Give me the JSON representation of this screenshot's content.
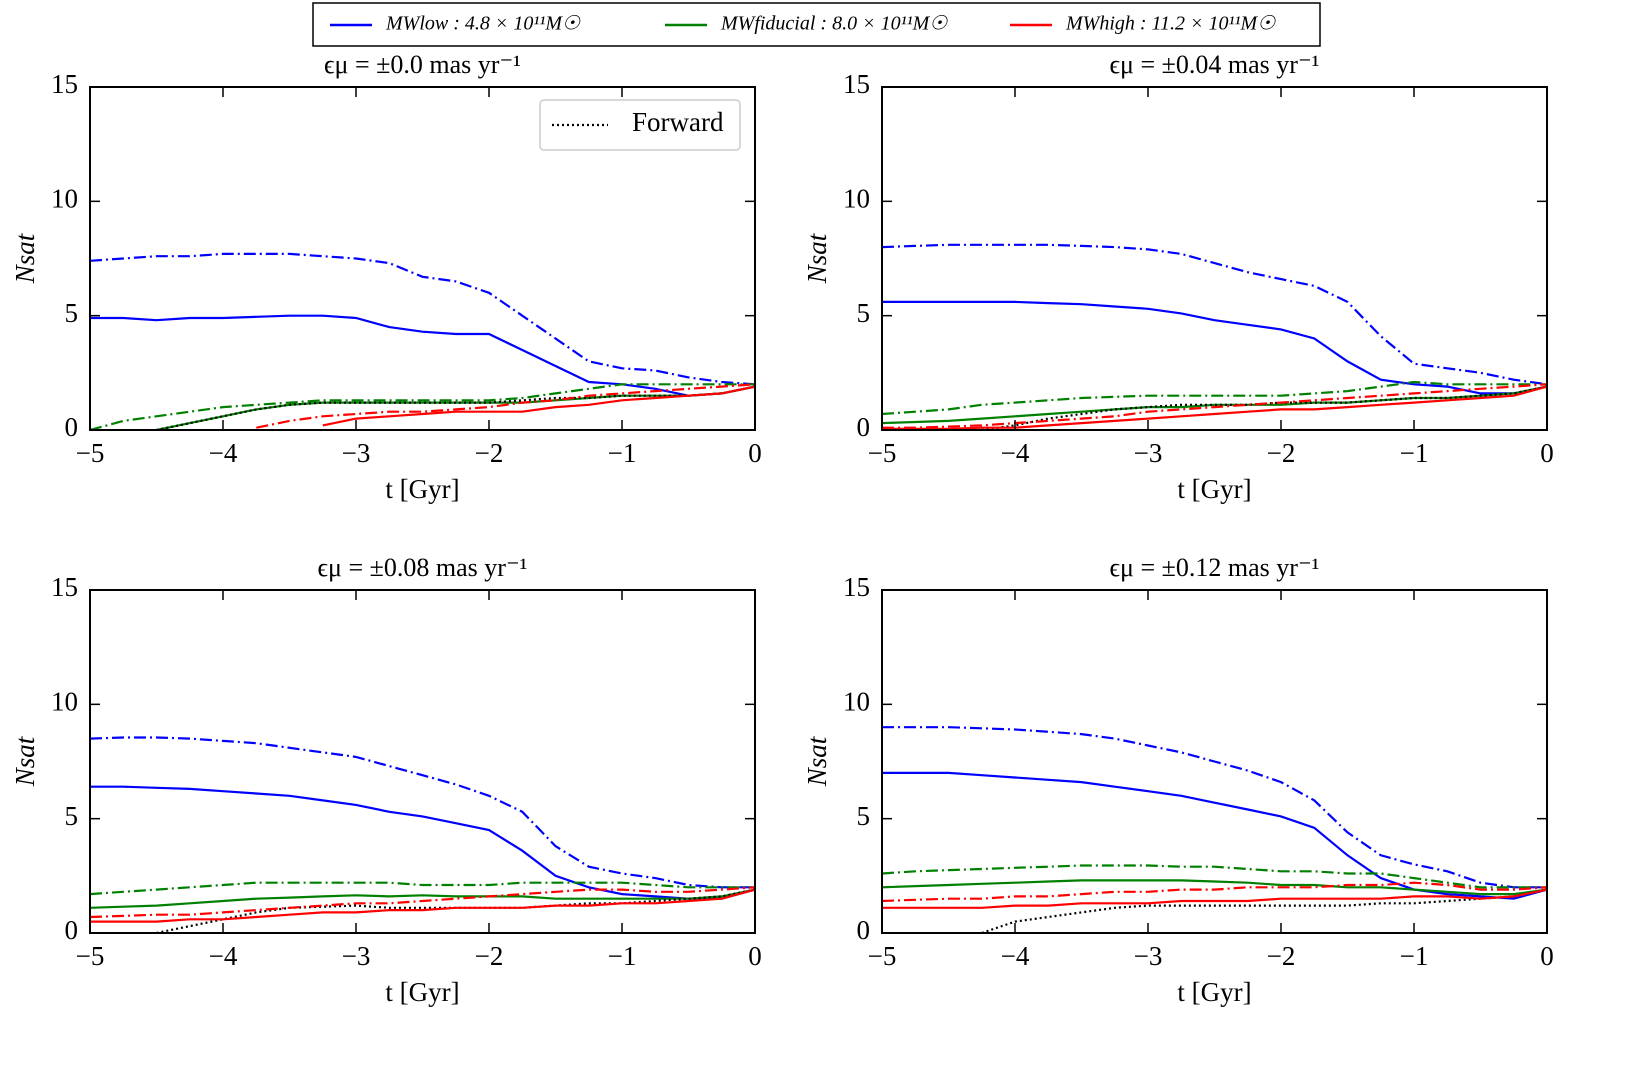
{
  "legend": [
    {
      "label": "MWlow : 4.8 × 10¹¹M☉",
      "color": "#0000ff"
    },
    {
      "label": "MWfiducial : 8.0 × 10¹¹M☉",
      "color": "#008000"
    },
    {
      "label": "MWhigh : 11.2 × 10¹¹M☉",
      "color": "#ff0000"
    }
  ],
  "chart_data": [
    {
      "type": "line",
      "title": "ϵμ = ±0.0 mas yr⁻¹",
      "xlabel": "t [Gyr]",
      "ylabel": "Nsat",
      "legend": "upper right",
      "xlim": [
        -5,
        0
      ],
      "ylim": [
        0,
        15
      ],
      "xticks": [
        {
          "value": -5,
          "label": "−5"
        },
        {
          "value": -4,
          "label": "−4"
        },
        {
          "value": -3,
          "label": "−3"
        },
        {
          "value": -2,
          "label": "−2"
        },
        {
          "value": -1,
          "label": "−1"
        },
        0
      ],
      "yticks": [
        0,
        5,
        10,
        15
      ],
      "x": [
        -5,
        -4.75,
        -4.5,
        -4.25,
        -4,
        -3.75,
        -3.5,
        -3.25,
        -3,
        -2.75,
        -2.5,
        -2.25,
        -2,
        -1.75,
        -1.5,
        -1.25,
        -1,
        -0.75,
        -0.5,
        -0.25,
        0
      ],
      "series": [
        {
          "color": "#0000ff",
          "style": "dashdot",
          "values": [
            7.4,
            7.5,
            7.6,
            7.6,
            7.7,
            7.7,
            7.7,
            7.6,
            7.5,
            7.3,
            6.7,
            6.5,
            6.0,
            5.0,
            4.0,
            3.0,
            2.7,
            2.6,
            2.3,
            2.1,
            2.0
          ]
        },
        {
          "color": "#0000ff",
          "style": "solid",
          "values": [
            4.9,
            4.9,
            4.8,
            4.9,
            4.9,
            4.95,
            5.0,
            5.0,
            4.9,
            4.5,
            4.3,
            4.2,
            4.2,
            3.5,
            2.8,
            2.1,
            2.0,
            1.8,
            1.5,
            1.6,
            1.9
          ]
        },
        {
          "color": "#008000",
          "style": "dashdot",
          "values": [
            0,
            0.4,
            0.6,
            0.8,
            1.0,
            1.1,
            1.2,
            1.3,
            1.3,
            1.3,
            1.3,
            1.3,
            1.3,
            1.4,
            1.6,
            1.8,
            2.0,
            2.0,
            2.0,
            2.0,
            2.0
          ]
        },
        {
          "color": "#008000",
          "style": "solid",
          "values": [
            null,
            null,
            0,
            0.3,
            0.6,
            0.9,
            1.1,
            1.2,
            1.2,
            1.2,
            1.2,
            1.2,
            1.2,
            1.2,
            1.3,
            1.4,
            1.5,
            1.5,
            1.5,
            1.6,
            1.9
          ]
        },
        {
          "name": "Forward",
          "color": "#000000",
          "style": "dotted",
          "values": [
            null,
            null,
            0,
            0.3,
            0.6,
            0.9,
            1.1,
            1.2,
            1.2,
            1.2,
            1.2,
            1.2,
            1.2,
            1.3,
            1.4,
            1.4,
            1.5,
            1.5,
            1.5,
            1.6,
            1.9
          ]
        },
        {
          "color": "#ff0000",
          "style": "dashdot",
          "values": [
            null,
            null,
            null,
            null,
            null,
            0.1,
            0.4,
            0.6,
            0.7,
            0.8,
            0.8,
            0.9,
            1.0,
            1.2,
            1.3,
            1.5,
            1.6,
            1.7,
            1.8,
            1.9,
            2.0
          ]
        },
        {
          "color": "#ff0000",
          "style": "solid",
          "values": [
            null,
            null,
            null,
            null,
            null,
            null,
            null,
            0.2,
            0.5,
            0.6,
            0.7,
            0.8,
            0.8,
            0.8,
            1.0,
            1.1,
            1.3,
            1.4,
            1.5,
            1.6,
            1.9
          ]
        }
      ]
    },
    {
      "type": "line",
      "title": "ϵμ = ±0.04 mas yr⁻¹",
      "xlabel": "t [Gyr]",
      "ylabel": "Nsat",
      "xlim": [
        -5,
        0
      ],
      "ylim": [
        0,
        15
      ],
      "xticks": [
        {
          "value": -5,
          "label": "−5"
        },
        {
          "value": -4,
          "label": "−4"
        },
        {
          "value": -3,
          "label": "−3"
        },
        {
          "value": -2,
          "label": "−2"
        },
        {
          "value": -1,
          "label": "−1"
        },
        0
      ],
      "yticks": [
        0,
        5,
        10,
        15
      ],
      "x": [
        -5,
        -4.75,
        -4.5,
        -4.25,
        -4,
        -3.75,
        -3.5,
        -3.25,
        -3,
        -2.75,
        -2.5,
        -2.25,
        -2,
        -1.75,
        -1.5,
        -1.25,
        -1,
        -0.75,
        -0.5,
        -0.25,
        0
      ],
      "series": [
        {
          "color": "#0000ff",
          "style": "dashdot",
          "values": [
            8.0,
            8.05,
            8.1,
            8.1,
            8.1,
            8.1,
            8.05,
            8.0,
            7.9,
            7.7,
            7.3,
            6.9,
            6.6,
            6.3,
            5.6,
            4.1,
            2.9,
            2.7,
            2.5,
            2.2,
            2.0
          ]
        },
        {
          "color": "#0000ff",
          "style": "solid",
          "values": [
            5.6,
            5.6,
            5.6,
            5.6,
            5.6,
            5.55,
            5.5,
            5.4,
            5.3,
            5.1,
            4.8,
            4.6,
            4.4,
            4.0,
            3.0,
            2.2,
            2.0,
            1.9,
            1.6,
            1.6,
            1.9
          ]
        },
        {
          "color": "#008000",
          "style": "dashdot",
          "values": [
            0.7,
            0.8,
            0.9,
            1.1,
            1.2,
            1.3,
            1.4,
            1.45,
            1.5,
            1.5,
            1.5,
            1.5,
            1.5,
            1.6,
            1.7,
            1.9,
            2.1,
            2.0,
            2.0,
            2.0,
            2.0
          ]
        },
        {
          "color": "#008000",
          "style": "solid",
          "values": [
            0.3,
            0.35,
            0.4,
            0.5,
            0.6,
            0.7,
            0.8,
            0.9,
            1.0,
            1.0,
            1.1,
            1.1,
            1.1,
            1.2,
            1.2,
            1.3,
            1.4,
            1.4,
            1.5,
            1.6,
            1.9
          ]
        },
        {
          "color": "#000000",
          "style": "dotted",
          "values": [
            null,
            null,
            null,
            0,
            0.2,
            0.5,
            0.7,
            0.9,
            1.0,
            1.1,
            1.1,
            1.1,
            1.2,
            1.2,
            1.2,
            1.3,
            1.4,
            1.4,
            1.5,
            1.6,
            1.9
          ]
        },
        {
          "color": "#ff0000",
          "style": "dashdot",
          "values": [
            0.1,
            0.1,
            0.15,
            0.2,
            0.3,
            0.4,
            0.5,
            0.6,
            0.8,
            0.9,
            1.0,
            1.1,
            1.2,
            1.3,
            1.4,
            1.5,
            1.6,
            1.7,
            1.8,
            1.9,
            2.0
          ]
        },
        {
          "color": "#ff0000",
          "style": "solid",
          "values": [
            0.05,
            0.05,
            0.05,
            0.1,
            0.1,
            0.2,
            0.3,
            0.4,
            0.5,
            0.6,
            0.7,
            0.8,
            0.9,
            0.9,
            1.0,
            1.1,
            1.2,
            1.3,
            1.4,
            1.5,
            1.9
          ]
        }
      ]
    },
    {
      "type": "line",
      "title": "ϵμ = ±0.08 mas yr⁻¹",
      "xlabel": "t [Gyr]",
      "ylabel": "Nsat",
      "xlim": [
        -5,
        0
      ],
      "ylim": [
        0,
        15
      ],
      "xticks": [
        {
          "value": -5,
          "label": "−5"
        },
        {
          "value": -4,
          "label": "−4"
        },
        {
          "value": -3,
          "label": "−3"
        },
        {
          "value": -2,
          "label": "−2"
        },
        {
          "value": -1,
          "label": "−1"
        },
        0
      ],
      "yticks": [
        0,
        5,
        10,
        15
      ],
      "x": [
        -5,
        -4.75,
        -4.5,
        -4.25,
        -4,
        -3.75,
        -3.5,
        -3.25,
        -3,
        -2.75,
        -2.5,
        -2.25,
        -2,
        -1.75,
        -1.5,
        -1.25,
        -1,
        -0.75,
        -0.5,
        -0.25,
        0
      ],
      "series": [
        {
          "color": "#0000ff",
          "style": "dashdot",
          "values": [
            8.5,
            8.55,
            8.55,
            8.5,
            8.4,
            8.3,
            8.1,
            7.9,
            7.7,
            7.3,
            6.9,
            6.5,
            6.0,
            5.3,
            3.8,
            2.9,
            2.6,
            2.4,
            2.1,
            2.0,
            2.0
          ]
        },
        {
          "color": "#0000ff",
          "style": "solid",
          "values": [
            6.4,
            6.4,
            6.35,
            6.3,
            6.2,
            6.1,
            6.0,
            5.8,
            5.6,
            5.3,
            5.1,
            4.8,
            4.5,
            3.6,
            2.5,
            2.0,
            1.7,
            1.6,
            1.5,
            1.5,
            1.9
          ]
        },
        {
          "color": "#008000",
          "style": "dashdot",
          "values": [
            1.7,
            1.8,
            1.9,
            2.0,
            2.1,
            2.2,
            2.2,
            2.2,
            2.2,
            2.2,
            2.1,
            2.1,
            2.1,
            2.2,
            2.2,
            2.2,
            2.2,
            2.1,
            2.0,
            2.0,
            2.0
          ]
        },
        {
          "color": "#008000",
          "style": "solid",
          "values": [
            1.1,
            1.15,
            1.2,
            1.3,
            1.4,
            1.5,
            1.55,
            1.6,
            1.65,
            1.6,
            1.65,
            1.6,
            1.6,
            1.6,
            1.5,
            1.5,
            1.5,
            1.5,
            1.5,
            1.6,
            1.9
          ]
        },
        {
          "color": "#000000",
          "style": "dotted",
          "values": [
            null,
            null,
            0,
            0.3,
            0.6,
            0.9,
            1.1,
            1.15,
            1.2,
            1.1,
            1.1,
            1.1,
            1.1,
            1.1,
            1.2,
            1.3,
            1.3,
            1.4,
            1.5,
            1.6,
            1.9
          ]
        },
        {
          "color": "#ff0000",
          "style": "dashdot",
          "values": [
            0.7,
            0.75,
            0.8,
            0.8,
            0.9,
            1.0,
            1.1,
            1.2,
            1.3,
            1.3,
            1.4,
            1.5,
            1.6,
            1.7,
            1.8,
            1.9,
            1.9,
            1.8,
            1.8,
            1.9,
            2.0
          ]
        },
        {
          "color": "#ff0000",
          "style": "solid",
          "values": [
            0.5,
            0.5,
            0.5,
            0.6,
            0.6,
            0.7,
            0.8,
            0.9,
            0.9,
            1.0,
            1.0,
            1.1,
            1.1,
            1.1,
            1.2,
            1.2,
            1.3,
            1.3,
            1.4,
            1.5,
            1.9
          ]
        }
      ]
    },
    {
      "type": "line",
      "title": "ϵμ = ±0.12 mas yr⁻¹",
      "xlabel": "t [Gyr]",
      "ylabel": "Nsat",
      "xlim": [
        -5,
        0
      ],
      "ylim": [
        0,
        15
      ],
      "xticks": [
        {
          "value": -5,
          "label": "−5"
        },
        {
          "value": -4,
          "label": "−4"
        },
        {
          "value": -3,
          "label": "−3"
        },
        {
          "value": -2,
          "label": "−2"
        },
        {
          "value": -1,
          "label": "−1"
        },
        0
      ],
      "yticks": [
        0,
        5,
        10,
        15
      ],
      "x": [
        -5,
        -4.75,
        -4.5,
        -4.25,
        -4,
        -3.75,
        -3.5,
        -3.25,
        -3,
        -2.75,
        -2.5,
        -2.25,
        -2,
        -1.75,
        -1.5,
        -1.25,
        -1,
        -0.75,
        -0.5,
        -0.25,
        0
      ],
      "series": [
        {
          "color": "#0000ff",
          "style": "dashdot",
          "values": [
            9.0,
            9.0,
            9.0,
            8.95,
            8.9,
            8.8,
            8.7,
            8.5,
            8.2,
            7.9,
            7.5,
            7.1,
            6.6,
            5.8,
            4.4,
            3.4,
            3.0,
            2.7,
            2.2,
            2.0,
            2.0
          ]
        },
        {
          "color": "#0000ff",
          "style": "solid",
          "values": [
            7.0,
            7.0,
            7.0,
            6.9,
            6.8,
            6.7,
            6.6,
            6.4,
            6.2,
            6.0,
            5.7,
            5.4,
            5.1,
            4.6,
            3.4,
            2.4,
            1.9,
            1.7,
            1.6,
            1.5,
            1.9
          ]
        },
        {
          "color": "#008000",
          "style": "dashdot",
          "values": [
            2.6,
            2.7,
            2.75,
            2.8,
            2.85,
            2.9,
            2.95,
            2.95,
            2.95,
            2.9,
            2.9,
            2.8,
            2.7,
            2.7,
            2.6,
            2.6,
            2.4,
            2.2,
            2.0,
            2.0,
            2.0
          ]
        },
        {
          "color": "#008000",
          "style": "solid",
          "values": [
            2.0,
            2.05,
            2.1,
            2.15,
            2.2,
            2.25,
            2.3,
            2.3,
            2.3,
            2.3,
            2.25,
            2.2,
            2.1,
            2.1,
            2.0,
            2.0,
            1.9,
            1.8,
            1.7,
            1.7,
            1.9
          ]
        },
        {
          "color": "#000000",
          "style": "dotted",
          "values": [
            null,
            null,
            null,
            0,
            0.5,
            0.7,
            0.9,
            1.1,
            1.2,
            1.2,
            1.2,
            1.2,
            1.2,
            1.2,
            1.2,
            1.3,
            1.3,
            1.4,
            1.5,
            1.6,
            1.9
          ]
        },
        {
          "color": "#ff0000",
          "style": "dashdot",
          "values": [
            1.4,
            1.45,
            1.5,
            1.5,
            1.6,
            1.6,
            1.7,
            1.8,
            1.8,
            1.9,
            1.9,
            2.0,
            2.0,
            2.0,
            2.1,
            2.1,
            2.2,
            2.1,
            1.9,
            1.9,
            2.0
          ]
        },
        {
          "color": "#ff0000",
          "style": "solid",
          "values": [
            1.1,
            1.1,
            1.1,
            1.1,
            1.2,
            1.2,
            1.3,
            1.3,
            1.3,
            1.4,
            1.4,
            1.4,
            1.5,
            1.5,
            1.5,
            1.5,
            1.6,
            1.6,
            1.5,
            1.6,
            1.9
          ]
        }
      ]
    }
  ]
}
